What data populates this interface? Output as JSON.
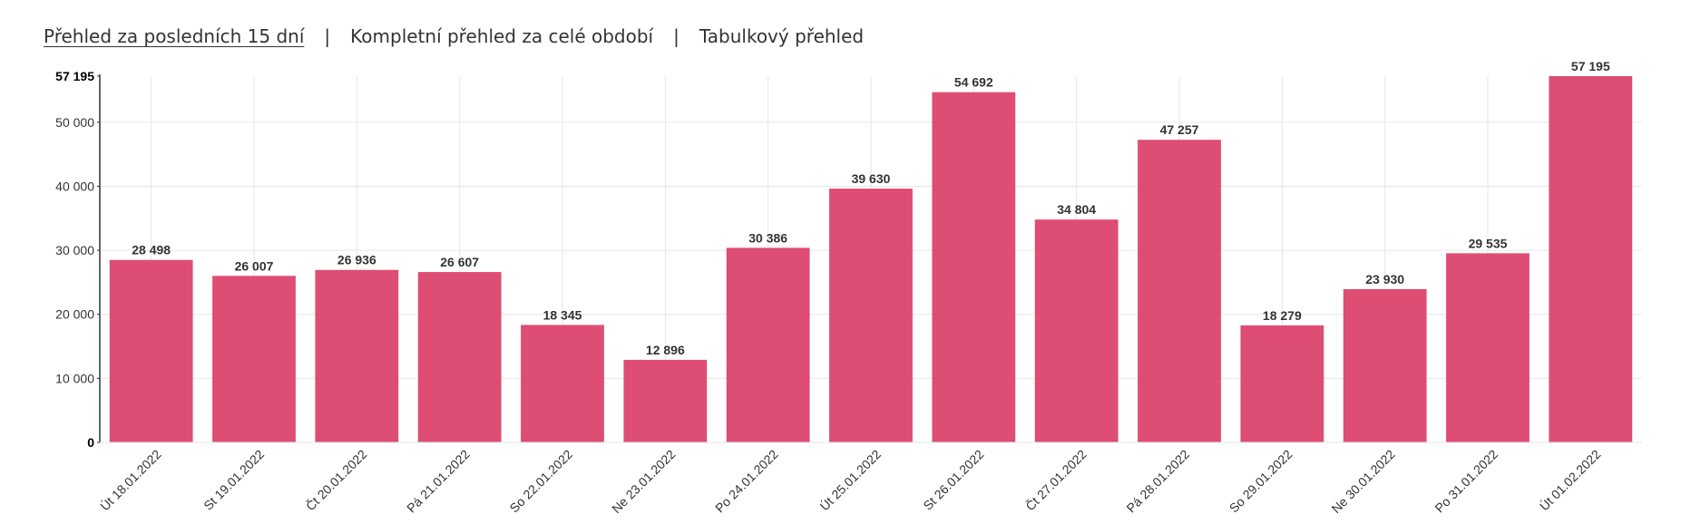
{
  "tabs": [
    {
      "label": "Přehled za posledních 15 dní",
      "active": true
    },
    {
      "label": "Kompletní přehled za celé období",
      "active": false
    },
    {
      "label": "Tabulkový přehled",
      "active": false
    }
  ],
  "tab_separator": "|",
  "colors": {
    "bar": "#de4d73",
    "grid": "#e6e6e6",
    "axis": "#333333",
    "text": "#333333"
  },
  "chart_data": {
    "type": "bar",
    "categories": [
      "Út 18.01.2022",
      "St 19.01.2022",
      "Čt 20.01.2022",
      "Pá 21.01.2022",
      "So 22.01.2022",
      "Ne 23.01.2022",
      "Po 24.01.2022",
      "Út 25.01.2022",
      "St 26.01.2022",
      "Čt 27.01.2022",
      "Pá 28.01.2022",
      "So 29.01.2022",
      "Ne 30.01.2022",
      "Po 31.01.2022",
      "Út 01.02.2022"
    ],
    "values": [
      28498,
      26007,
      26936,
      26607,
      18345,
      12896,
      30386,
      39630,
      54692,
      34804,
      47257,
      18279,
      23930,
      29535,
      57195
    ],
    "value_labels": [
      "28 498",
      "26 007",
      "26 936",
      "26 607",
      "18 345",
      "12 896",
      "30 386",
      "39 630",
      "54 692",
      "34 804",
      "47 257",
      "18 279",
      "23 930",
      "29 535",
      "57 195"
    ],
    "y_ticks": [
      0,
      10000,
      20000,
      30000,
      40000,
      50000,
      57195
    ],
    "y_tick_labels": [
      "0",
      "10 000",
      "20 000",
      "30 000",
      "40 000",
      "50 000",
      "57 195"
    ],
    "ylim": [
      0,
      57195
    ],
    "grid": true,
    "title": "",
    "xlabel": "",
    "ylabel": ""
  }
}
